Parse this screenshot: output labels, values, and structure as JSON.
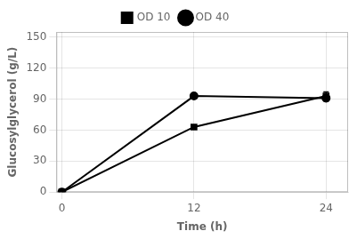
{
  "chart_data": {
    "type": "line",
    "x": [
      0,
      12,
      24
    ],
    "series": [
      {
        "name": "OD 10",
        "color": "#000000",
        "marker": "square",
        "values": [
          0,
          63,
          93
        ],
        "yerr": [
          0,
          0,
          4
        ]
      },
      {
        "name": "OD 40",
        "color": "#000000",
        "marker": "circle",
        "values": [
          0,
          93,
          91
        ],
        "yerr": [
          0,
          2,
          3
        ]
      }
    ],
    "xlabel": "Time (h)",
    "ylabel": "Glucosylglycerol (g/L)",
    "xlim": [
      -0.5,
      26
    ],
    "ylim": [
      0,
      155
    ],
    "xticks": [
      0,
      12,
      24
    ],
    "yticks": [
      0,
      30,
      60,
      90,
      120,
      150
    ],
    "grid": true,
    "legend": "top"
  }
}
